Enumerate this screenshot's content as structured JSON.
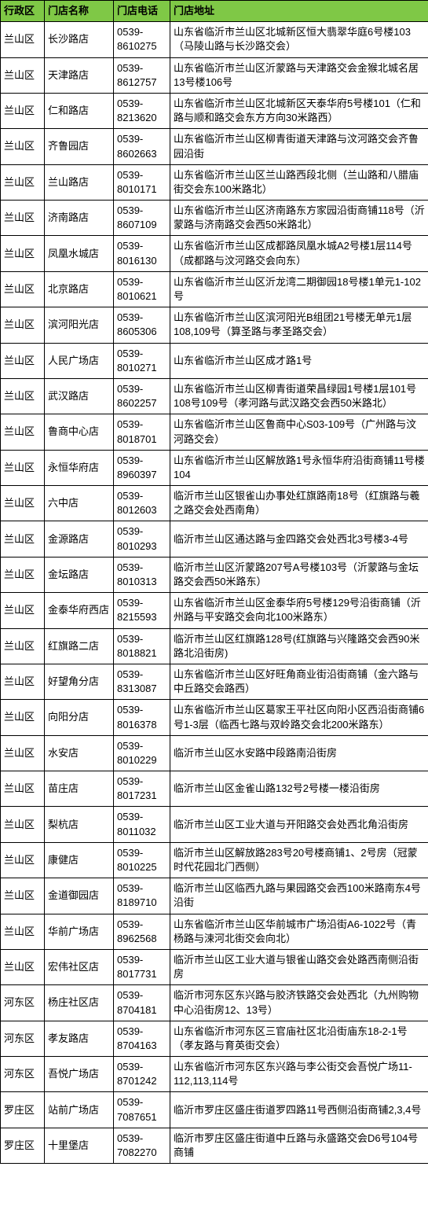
{
  "header_bg": "#7fc846",
  "columns": [
    "行政区",
    "门店名称",
    "门店电话",
    "门店地址"
  ],
  "rows": [
    [
      "兰山区",
      "长沙路店",
      "0539-8610275",
      "山东省临沂市兰山区北城新区恒大翡翠华庭6号楼103（马陵山路与长沙路交会）"
    ],
    [
      "兰山区",
      "天津路店",
      "0539-8612757",
      "山东省临沂市兰山区沂蒙路与天津路交会金猴北城名居13号楼106号"
    ],
    [
      "兰山区",
      "仁和路店",
      "0539-8213620",
      "山东省临沂市兰山区北城新区天泰华府5号楼101（仁和路与顺和路交会东方方向30米路西）"
    ],
    [
      "兰山区",
      "齐鲁园店",
      "0539-8602663",
      "山东省临沂市兰山区柳青街道天津路与汶河路交会齐鲁园沿街"
    ],
    [
      "兰山区",
      "兰山路店",
      "0539-8010171",
      "山东省临沂市兰山区兰山路西段北侧（兰山路和八腊庙街交会东100米路北）"
    ],
    [
      "兰山区",
      "济南路店",
      "0539-8607109",
      "山东省临沂市兰山区济南路东方家园沿街商铺118号（沂蒙路与济南路交会西50米路北）"
    ],
    [
      "兰山区",
      "凤凰水城店",
      "0539-8016130",
      "山东省临沂市兰山区成都路凤凰水城A2号楼1层114号（成都路与汶河路交会向东）"
    ],
    [
      "兰山区",
      "北京路店",
      "0539-8010621",
      "山东省临沂市兰山区沂龙湾二期御园18号楼1单元1-102号"
    ],
    [
      "兰山区",
      "滨河阳光店",
      "0539-8605306",
      "山东省临沂市兰山区滨河阳光B组团21号楼无单元1层108,109号（算圣路与孝圣路交会）"
    ],
    [
      "兰山区",
      "人民广场店",
      "0539-8010271",
      "山东省临沂市兰山区成才路1号"
    ],
    [
      "兰山区",
      "武汉路店",
      "0539-8602257",
      "山东省临沂市兰山区柳青街道荣昌绿园1号楼1层101号108号109号（孝河路与武汉路交会西50米路北）"
    ],
    [
      "兰山区",
      "鲁商中心店",
      "0539-8018701",
      "山东省临沂市兰山区鲁商中心S03-109号（广州路与汶河路交会）"
    ],
    [
      "兰山区",
      "永恒华府店",
      "0539-8960397",
      "山东省临沂市兰山区解放路1号永恒华府沿街商铺11号楼104"
    ],
    [
      "兰山区",
      "六中店",
      "0539-8012603",
      "临沂市兰山区银雀山办事处红旗路南18号（红旗路与羲之路交会处西南角）"
    ],
    [
      "兰山区",
      "金源路店",
      "0539-8010293",
      "临沂市兰山区通达路与金四路交会处西北3号楼3-4号"
    ],
    [
      "兰山区",
      "金坛路店",
      "0539-8010313",
      "临沂市兰山区沂蒙路207号A号楼103号（沂蒙路与金坛路交会西50米路东）"
    ],
    [
      "兰山区",
      "金泰华府西店",
      "0539-8215593",
      "山东省临沂市兰山区金泰华府5号楼129号沿街商铺（沂州路与平安路交会向北100米路东）"
    ],
    [
      "兰山区",
      "红旗路二店",
      "0539-8018821",
      "临沂市兰山区红旗路128号(红旗路与兴隆路交会西90米路北沿街房)"
    ],
    [
      "兰山区",
      "好望角分店",
      "0539-8313087",
      "山东省临沂市兰山区好旺角商业街沿街商铺（金六路与中丘路交会路西）"
    ],
    [
      "兰山区",
      "向阳分店",
      "0539-8016378",
      "山东省临沂市兰山区葛家王平社区向阳小区西沿街商铺6号1-3层（临西七路与双岭路交会北200米路东）"
    ],
    [
      "兰山区",
      "水安店",
      "0539-8010229",
      "临沂市兰山区水安路中段路南沿街房"
    ],
    [
      "兰山区",
      "苗庄店",
      "0539-8017231",
      "临沂市兰山区金雀山路132号2号楼一楼沿街房"
    ],
    [
      "兰山区",
      "梨杭店",
      "0539-8011032",
      "临沂市兰山区工业大道与开阳路交会处西北角沿街房"
    ],
    [
      "兰山区",
      "康健店",
      "0539-8010225",
      "临沂市兰山区解放路283号20号楼商铺1、2号房（冠蒙时代花园北门西侧）"
    ],
    [
      "兰山区",
      "金道御园店",
      "0539-8189710",
      "临沂市兰山区临西九路与果园路交会西100米路南东4号沿街"
    ],
    [
      "兰山区",
      "华前广场店",
      "0539-8962568",
      "山东省临沂市兰山区华前城市广场沿街A6-1022号（青杨路与涑河北街交会向北）"
    ],
    [
      "兰山区",
      "宏伟社区店",
      "0539-8017731",
      "临沂市兰山区工业大道与银雀山路交会处路西南侧沿街房"
    ],
    [
      "河东区",
      "杨庄社区店",
      "0539-8704181",
      "临沂市河东区东兴路与胶济铁路交会处西北（九州购物中心沿街房12、13号）"
    ],
    [
      "河东区",
      "孝友路店",
      "0539-8704163",
      "山东省临沂市河东区三官庙社区北沿街庙东18-2-1号（孝友路与育英街交会）"
    ],
    [
      "河东区",
      "吾悦广场店",
      "0539-8701242",
      "山东省临沂市河东区东兴路与李公街交会吾悦广场11-112,113,114号"
    ],
    [
      "罗庄区",
      "站前广场店",
      "0539-7087651",
      "临沂市罗庄区盛庄街道罗四路11号西侧沿街商铺2,3,4号"
    ],
    [
      "罗庄区",
      "十里堡店",
      "0539-7082270",
      "临沂市罗庄区盛庄街道中丘路与永盛路交会D6号104号商铺"
    ]
  ]
}
